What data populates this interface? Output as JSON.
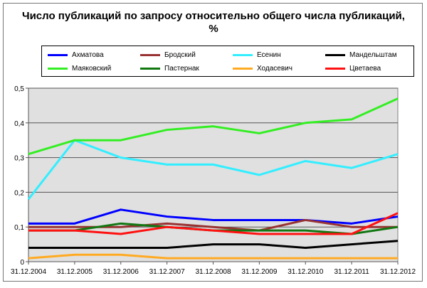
{
  "chart_data": {
    "type": "line",
    "title": "Число публикаций по запросу относительно общего числа публикаций, %",
    "title_lines": [
      "Число публикаций по запросу относительно общего числа публикаций,",
      "%"
    ],
    "xlabel": "",
    "ylabel": "",
    "ylim": [
      0,
      0.5
    ],
    "yticks": [
      "0",
      "0,1",
      "0,2",
      "0,3",
      "0,4",
      "0,5"
    ],
    "grid": true,
    "legend_position": "top",
    "categories": [
      "31.12.2004",
      "31.12.2005",
      "31.12.2006",
      "31.12.2007",
      "31.12.2008",
      "31.12.2009",
      "31.12.2010",
      "31.12.2011",
      "31.12.2012"
    ],
    "series": [
      {
        "name": "Ахматова",
        "color": "#0000ff",
        "values": [
          0.11,
          0.11,
          0.15,
          0.13,
          0.12,
          0.12,
          0.12,
          0.11,
          0.13
        ]
      },
      {
        "name": "Бродский",
        "color": "#993333",
        "values": [
          0.1,
          0.1,
          0.1,
          0.11,
          0.1,
          0.09,
          0.12,
          0.1,
          0.1
        ]
      },
      {
        "name": "Есенин",
        "color": "#33eeff",
        "values": [
          0.18,
          0.35,
          0.3,
          0.28,
          0.28,
          0.25,
          0.29,
          0.27,
          0.31
        ]
      },
      {
        "name": "Мандельштам",
        "color": "#000000",
        "values": [
          0.04,
          0.04,
          0.04,
          0.04,
          0.05,
          0.05,
          0.04,
          0.05,
          0.06
        ]
      },
      {
        "name": "Маяковский",
        "color": "#33ee22",
        "values": [
          0.31,
          0.35,
          0.35,
          0.38,
          0.39,
          0.37,
          0.4,
          0.41,
          0.47
        ]
      },
      {
        "name": "Пастернак",
        "color": "#117711",
        "values": [
          0.09,
          0.09,
          0.11,
          0.1,
          0.09,
          0.09,
          0.09,
          0.08,
          0.1
        ]
      },
      {
        "name": "Ходасевич",
        "color": "#ffaa22",
        "values": [
          0.01,
          0.02,
          0.02,
          0.01,
          0.01,
          0.01,
          0.01,
          0.01,
          0.01
        ]
      },
      {
        "name": "Цветаева",
        "color": "#ff1111",
        "values": [
          0.09,
          0.09,
          0.08,
          0.1,
          0.09,
          0.08,
          0.08,
          0.08,
          0.14
        ]
      }
    ]
  }
}
